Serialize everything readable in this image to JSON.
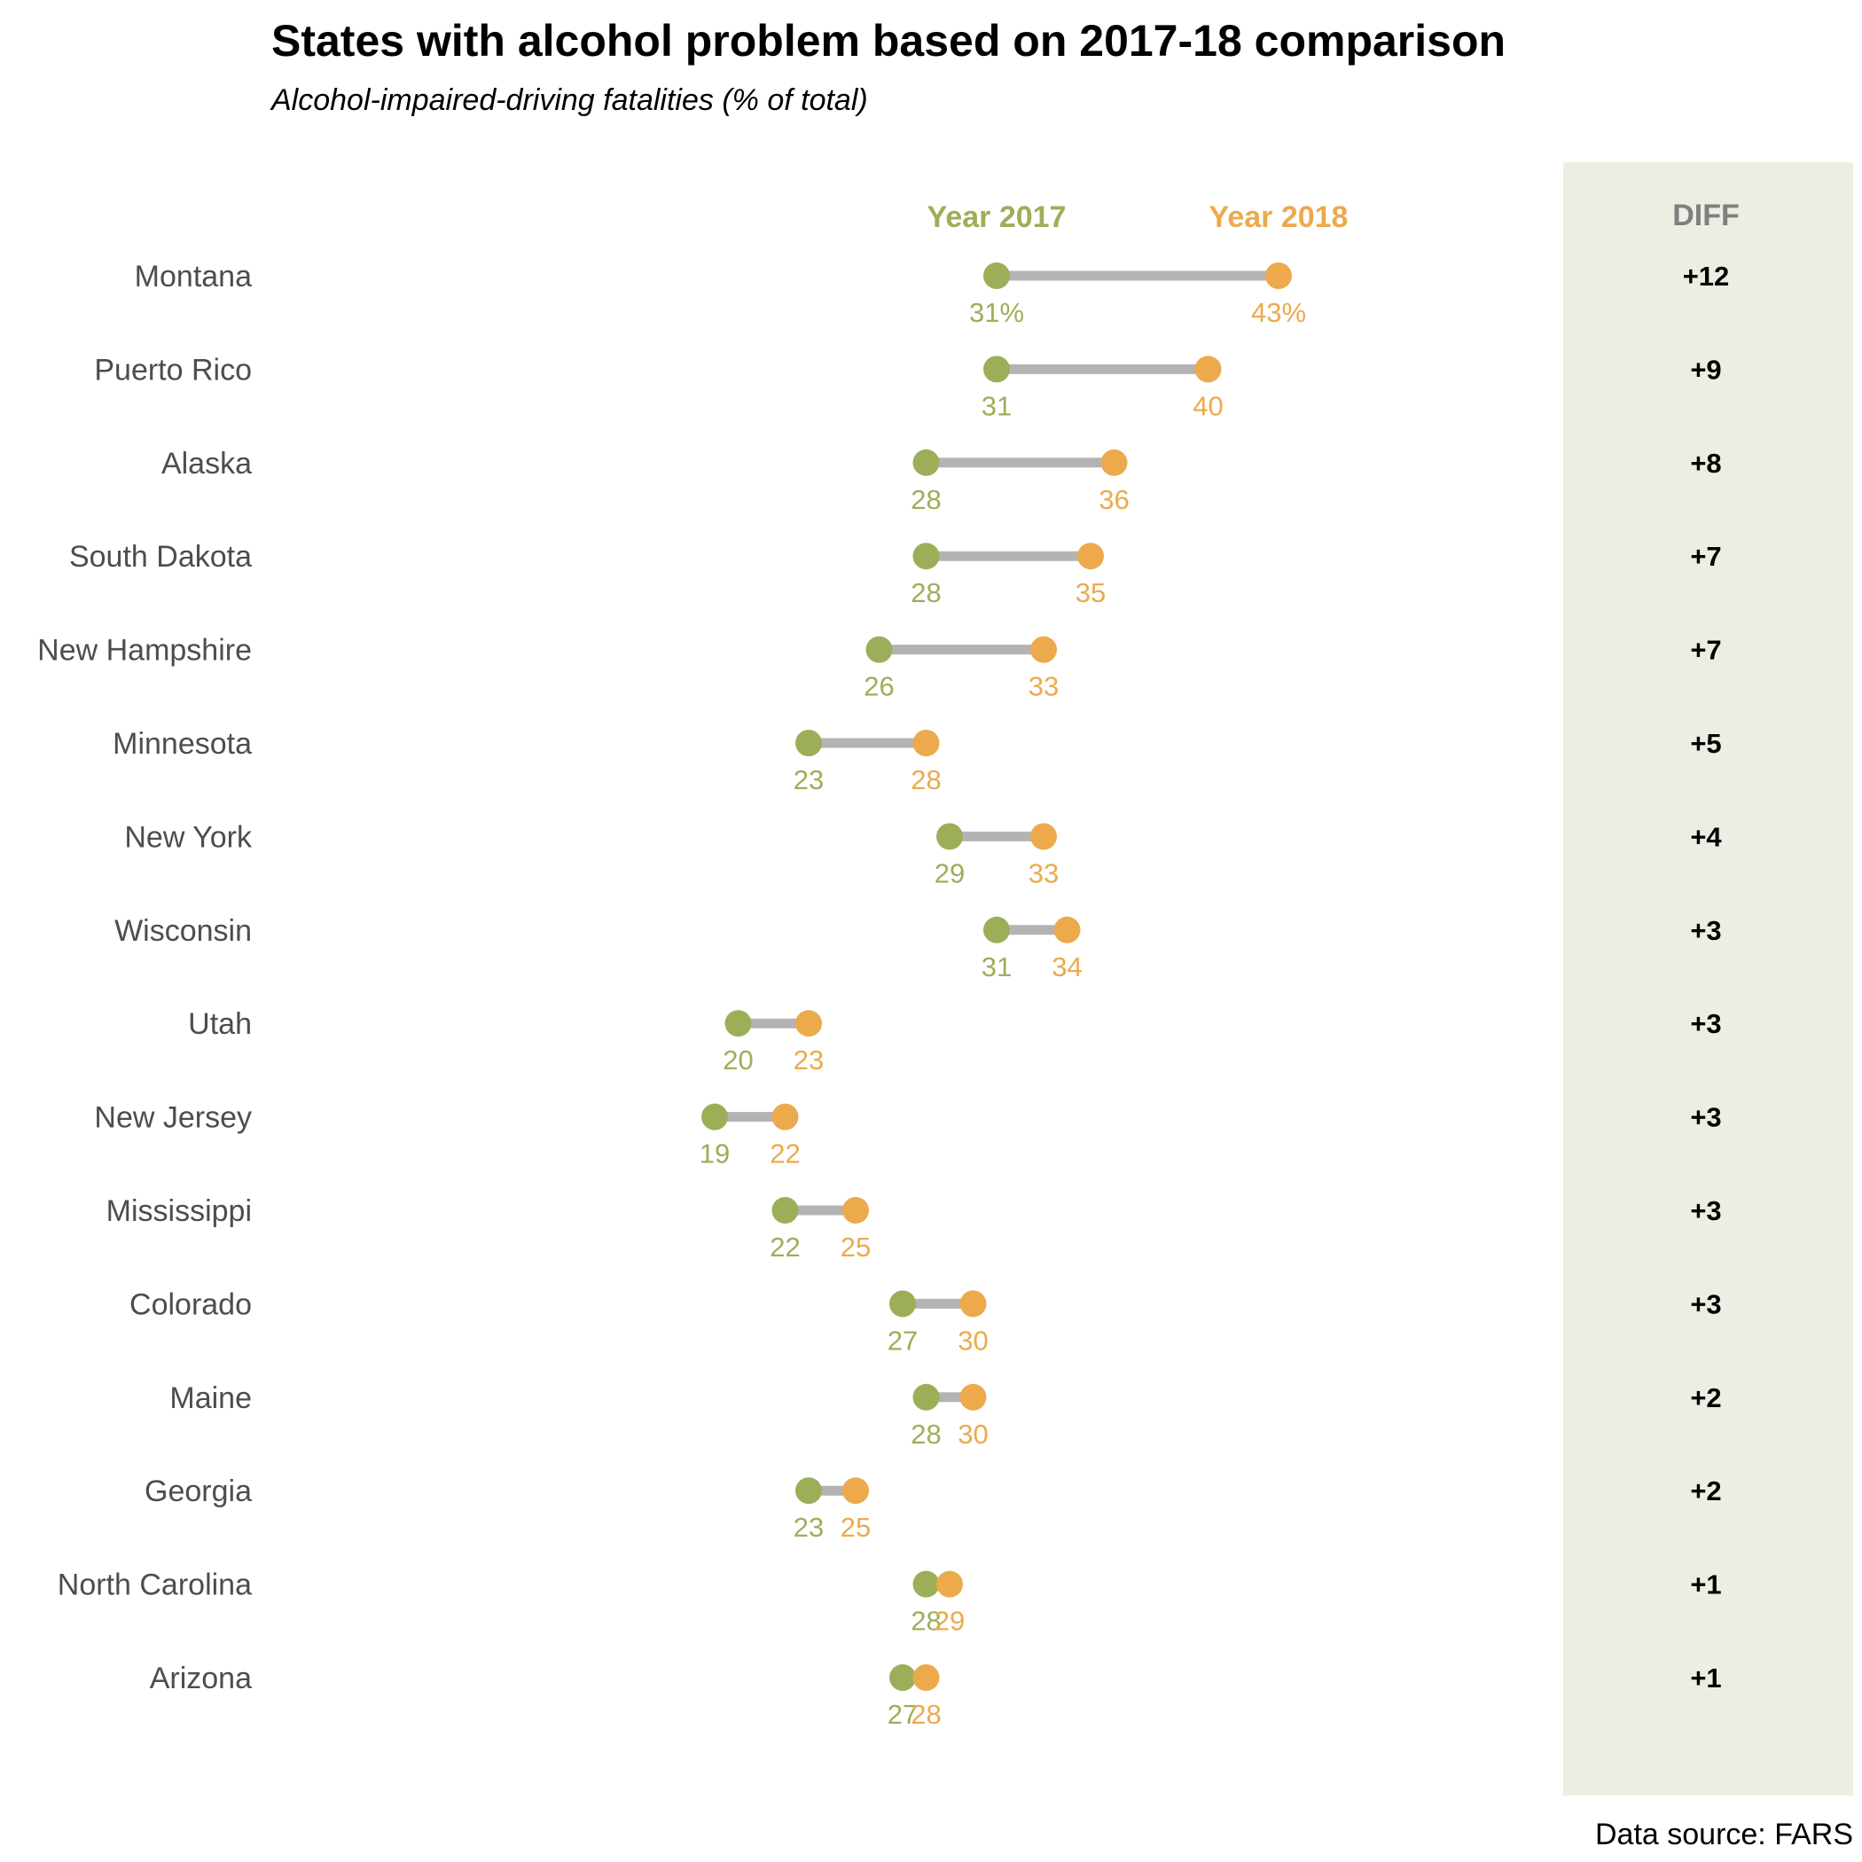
{
  "chart_data": {
    "type": "dumbbell",
    "title": "States with alcohol problem based on 2017-18 comparison",
    "subtitle": "Alcohol-impaired-driving fatalities (% of total)",
    "caption": "Data source: FARS",
    "legend": {
      "series_2017": "Year 2017",
      "series_2018": "Year 2018",
      "diff_header": "DIFF"
    },
    "colors": {
      "year_2017": "#9caf58",
      "year_2018": "#ecaa4c",
      "connector": "#b3b3b3",
      "diff_panel": "#edede3"
    },
    "rows": [
      {
        "state": "Montana",
        "y2017": 31,
        "y2018": 43,
        "label2017": "31%",
        "label2018": "43%",
        "diff": "+12"
      },
      {
        "state": "Puerto Rico",
        "y2017": 31,
        "y2018": 40,
        "label2017": "31",
        "label2018": "40",
        "diff": "+9"
      },
      {
        "state": "Alaska",
        "y2017": 28,
        "y2018": 36,
        "label2017": "28",
        "label2018": "36",
        "diff": "+8"
      },
      {
        "state": "South Dakota",
        "y2017": 28,
        "y2018": 35,
        "label2017": "28",
        "label2018": "35",
        "diff": "+7"
      },
      {
        "state": "New Hampshire",
        "y2017": 26,
        "y2018": 33,
        "label2017": "26",
        "label2018": "33",
        "diff": "+7"
      },
      {
        "state": "Minnesota",
        "y2017": 23,
        "y2018": 28,
        "label2017": "23",
        "label2018": "28",
        "diff": "+5"
      },
      {
        "state": "New York",
        "y2017": 29,
        "y2018": 33,
        "label2017": "29",
        "label2018": "33",
        "diff": "+4"
      },
      {
        "state": "Wisconsin",
        "y2017": 31,
        "y2018": 34,
        "label2017": "31",
        "label2018": "34",
        "diff": "+3"
      },
      {
        "state": "Utah",
        "y2017": 20,
        "y2018": 23,
        "label2017": "20",
        "label2018": "23",
        "diff": "+3"
      },
      {
        "state": "New Jersey",
        "y2017": 19,
        "y2018": 22,
        "label2017": "19",
        "label2018": "22",
        "diff": "+3"
      },
      {
        "state": "Mississippi",
        "y2017": 22,
        "y2018": 25,
        "label2017": "22",
        "label2018": "25",
        "diff": "+3"
      },
      {
        "state": "Colorado",
        "y2017": 27,
        "y2018": 30,
        "label2017": "27",
        "label2018": "30",
        "diff": "+3"
      },
      {
        "state": "Maine",
        "y2017": 28,
        "y2018": 30,
        "label2017": "28",
        "label2018": "30",
        "diff": "+2"
      },
      {
        "state": "Georgia",
        "y2017": 23,
        "y2018": 25,
        "label2017": "23",
        "label2018": "25",
        "diff": "+2"
      },
      {
        "state": "North Carolina",
        "y2017": 28,
        "y2018": 29,
        "label2017": "28",
        "label2018": "29",
        "diff": "+1"
      },
      {
        "state": "Arizona",
        "y2017": 27,
        "y2018": 28,
        "label2017": "27",
        "label2018": "28",
        "diff": "+1"
      }
    ]
  }
}
